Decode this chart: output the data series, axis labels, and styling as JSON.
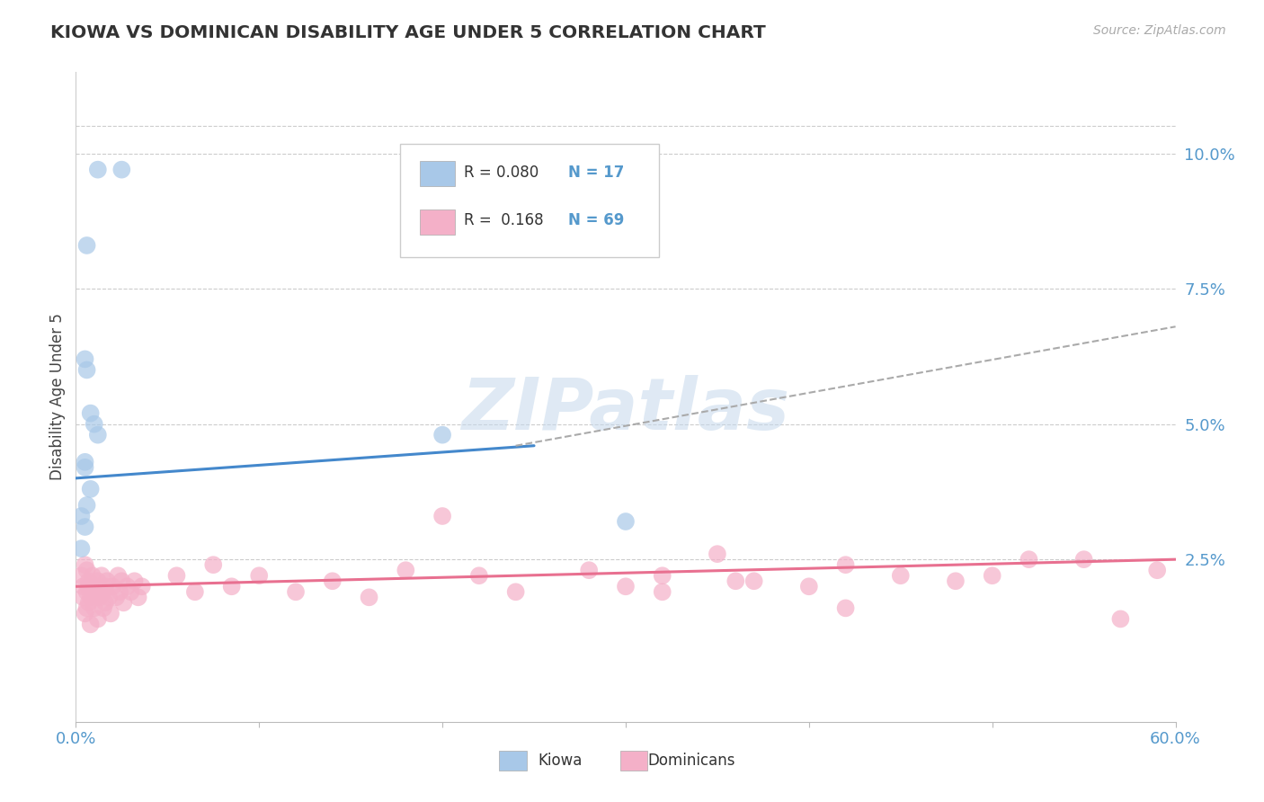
{
  "title": "KIOWA VS DOMINICAN DISABILITY AGE UNDER 5 CORRELATION CHART",
  "source_text": "Source: ZipAtlas.com",
  "ylabel": "Disability Age Under 5",
  "xlim": [
    0.0,
    0.6
  ],
  "ylim": [
    -0.005,
    0.115
  ],
  "xtick_labels": [
    "0.0%",
    "",
    "",
    "",
    "",
    "",
    "60.0%"
  ],
  "xtick_vals": [
    0.0,
    0.1,
    0.2,
    0.3,
    0.4,
    0.5,
    0.6
  ],
  "ytick_labels": [
    "2.5%",
    "5.0%",
    "7.5%",
    "10.0%"
  ],
  "ytick_vals": [
    0.025,
    0.05,
    0.075,
    0.1
  ],
  "kiowa_color": "#a8c8e8",
  "dominican_color": "#f4b0c8",
  "kiowa_line_color": "#4488cc",
  "dominican_line_color": "#e87090",
  "ref_line_color": "#aaaaaa",
  "legend_R_kiowa": "0.080",
  "legend_N_kiowa": "17",
  "legend_R_dominican": "0.168",
  "legend_N_dominican": "69",
  "watermark": "ZIPatlas",
  "background_color": "#ffffff",
  "kiowa_x": [
    0.012,
    0.025,
    0.006,
    0.006,
    0.008,
    0.01,
    0.012,
    0.005,
    0.005,
    0.008,
    0.006,
    0.003,
    0.005,
    0.003,
    0.2,
    0.3,
    0.005
  ],
  "kiowa_y": [
    0.097,
    0.097,
    0.083,
    0.06,
    0.052,
    0.05,
    0.048,
    0.043,
    0.042,
    0.038,
    0.035,
    0.033,
    0.031,
    0.027,
    0.048,
    0.032,
    0.062
  ],
  "kiowa_line_x0": 0.0,
  "kiowa_line_y0": 0.04,
  "kiowa_line_x1": 0.25,
  "kiowa_line_y1": 0.046,
  "ref_line_x0": 0.24,
  "ref_line_y0": 0.046,
  "ref_line_x1": 0.6,
  "ref_line_y1": 0.068,
  "dom_line_x0": 0.0,
  "dom_line_y0": 0.02,
  "dom_line_x1": 0.6,
  "dom_line_y1": 0.025,
  "dom_x_cluster1": [
    0.004,
    0.006,
    0.006,
    0.007,
    0.008,
    0.009,
    0.01,
    0.011,
    0.012,
    0.013,
    0.014,
    0.015,
    0.015,
    0.016,
    0.016,
    0.017,
    0.018,
    0.019,
    0.02,
    0.022,
    0.023,
    0.024,
    0.025,
    0.026,
    0.028,
    0.03,
    0.032,
    0.034,
    0.036,
    0.005,
    0.007,
    0.008,
    0.01,
    0.012,
    0.013,
    0.003,
    0.004,
    0.005,
    0.006,
    0.007
  ],
  "dom_y_cluster1": [
    0.02,
    0.019,
    0.023,
    0.021,
    0.018,
    0.022,
    0.02,
    0.019,
    0.021,
    0.018,
    0.022,
    0.019,
    0.016,
    0.02,
    0.017,
    0.021,
    0.018,
    0.015,
    0.02,
    0.018,
    0.022,
    0.019,
    0.021,
    0.017,
    0.02,
    0.019,
    0.021,
    0.018,
    0.02,
    0.015,
    0.017,
    0.013,
    0.016,
    0.014,
    0.019,
    0.022,
    0.018,
    0.024,
    0.016,
    0.02
  ],
  "dom_x_spread": [
    0.055,
    0.065,
    0.075,
    0.085,
    0.1,
    0.12,
    0.14,
    0.16,
    0.18,
    0.2,
    0.22,
    0.24,
    0.28,
    0.3,
    0.32,
    0.35,
    0.37,
    0.4,
    0.42,
    0.45,
    0.48,
    0.5,
    0.52,
    0.55,
    0.57,
    0.59,
    0.32,
    0.36,
    0.42
  ],
  "dom_y_spread": [
    0.022,
    0.019,
    0.024,
    0.02,
    0.022,
    0.019,
    0.021,
    0.018,
    0.023,
    0.033,
    0.022,
    0.019,
    0.023,
    0.02,
    0.022,
    0.026,
    0.021,
    0.02,
    0.024,
    0.022,
    0.021,
    0.022,
    0.025,
    0.025,
    0.014,
    0.023,
    0.019,
    0.021,
    0.016
  ]
}
